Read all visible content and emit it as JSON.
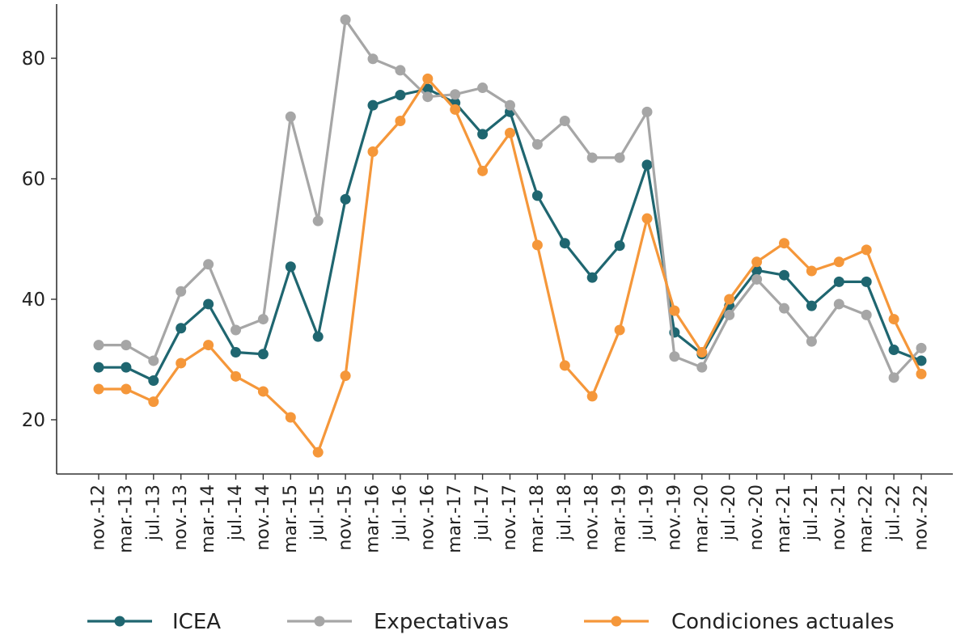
{
  "chart_data": {
    "type": "line",
    "x_labels": [
      "nov.-12",
      "mar.-13",
      "jul.-13",
      "nov.-13",
      "mar.-14",
      "jul.-14",
      "nov.-14",
      "mar.-15",
      "jul.-15",
      "nov.-15",
      "mar.-16",
      "jul.-16",
      "nov.-16",
      "mar.-17",
      "jul.-17",
      "nov.-17",
      "mar.-18",
      "jul.-18",
      "nov.-18",
      "mar.-19",
      "jul.-19",
      "nov.-19",
      "mar.-20",
      "jul.-20",
      "nov.-20",
      "mar.-21",
      "jul.-21",
      "nov.-21",
      "mar.-22",
      "jul.-22",
      "nov.-22"
    ],
    "y_ticks": [
      20,
      40,
      60,
      80
    ],
    "ylim": [
      11,
      89
    ],
    "grid": false,
    "legend_position": "bottom",
    "series": [
      {
        "name": "ICEA",
        "color": "#1f6670",
        "values": [
          28.7,
          28.7,
          26.5,
          35.2,
          39.2,
          31.2,
          30.9,
          45.4,
          33.8,
          56.6,
          72.2,
          73.9,
          74.9,
          72.6,
          67.4,
          71.1,
          57.2,
          49.3,
          43.6,
          48.9,
          62.3,
          34.5,
          30.9,
          38.9,
          44.8,
          44.0,
          38.9,
          42.9,
          42.9,
          31.6,
          29.8
        ]
      },
      {
        "name": "Expectativas",
        "color": "#a6a6a6",
        "values": [
          32.4,
          32.4,
          29.8,
          41.3,
          45.8,
          34.9,
          36.7,
          70.3,
          53.0,
          86.4,
          79.9,
          78.0,
          73.6,
          74.0,
          75.1,
          72.2,
          65.7,
          69.6,
          63.5,
          63.5,
          71.1,
          30.5,
          28.7,
          37.4,
          43.3,
          38.5,
          33.0,
          39.2,
          37.4,
          27.0,
          31.9
        ]
      },
      {
        "name": "Condiciones actuales",
        "color": "#f5973a",
        "values": [
          25.1,
          25.1,
          23.0,
          29.4,
          32.4,
          27.2,
          24.7,
          20.4,
          14.6,
          27.3,
          64.5,
          69.6,
          76.6,
          71.5,
          61.3,
          67.6,
          49.0,
          29.0,
          23.9,
          34.9,
          53.4,
          38.1,
          31.2,
          40.0,
          46.2,
          49.3,
          44.7,
          46.2,
          48.2,
          36.7,
          27.6
        ]
      }
    ]
  }
}
